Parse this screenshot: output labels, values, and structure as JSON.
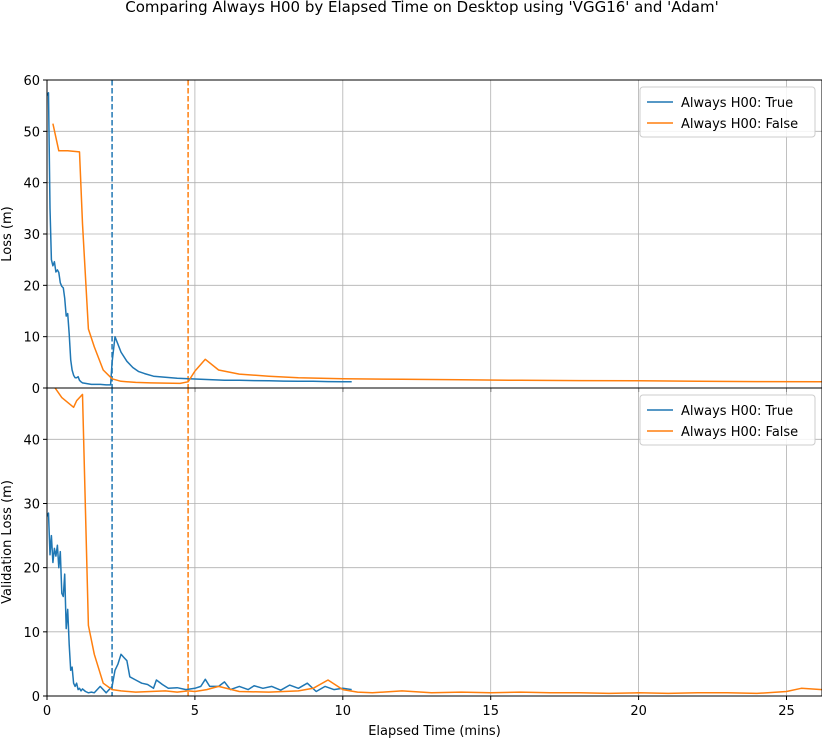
{
  "title": "Comparing Always H00 by Elapsed Time on Desktop using 'VGG16' and 'Adam'",
  "colors": {
    "series_true": "#1f77b4",
    "series_false": "#ff7f0e",
    "grid": "#b0b0b0",
    "axes": "#000000"
  },
  "chart_data": [
    {
      "type": "line",
      "ylabel": "Loss (m)",
      "xlim": [
        0,
        26.2
      ],
      "ylim": [
        0,
        60
      ],
      "yticks": [
        0,
        10,
        20,
        30,
        40,
        50,
        60
      ],
      "grid": true,
      "legend_position": "top-right",
      "vlines": [
        {
          "x": 2.2,
          "series": "Always H00: True"
        },
        {
          "x": 4.77,
          "series": "Always H00: False"
        }
      ],
      "series": [
        {
          "name": "Always H00: True",
          "x": [
            0.0,
            0.05,
            0.1,
            0.15,
            0.2,
            0.25,
            0.3,
            0.35,
            0.4,
            0.45,
            0.5,
            0.55,
            0.6,
            0.65,
            0.7,
            0.75,
            0.8,
            0.85,
            0.9,
            0.95,
            1.0,
            1.05,
            1.1,
            1.15,
            1.2,
            1.3,
            1.4,
            1.5,
            1.6,
            1.8,
            2.0,
            2.15,
            2.2,
            2.3,
            2.4,
            2.5,
            2.7,
            2.9,
            3.1,
            3.3,
            3.6,
            4.0,
            4.4,
            4.8,
            5.2,
            5.6,
            6.0,
            6.5,
            7.0,
            7.5,
            8.0,
            8.5,
            9.0,
            9.5,
            10.0,
            10.3
          ],
          "values": [
            57.0,
            57.5,
            35.0,
            25.0,
            23.8,
            24.6,
            22.6,
            23.0,
            22.5,
            20.5,
            19.8,
            19.5,
            17.5,
            14.0,
            14.5,
            10.5,
            5.5,
            3.5,
            2.5,
            2.0,
            2.0,
            2.2,
            1.5,
            1.2,
            1.0,
            0.9,
            0.8,
            0.7,
            0.7,
            0.7,
            0.6,
            0.6,
            5.0,
            10.0,
            8.5,
            7.0,
            5.2,
            4.0,
            3.2,
            2.8,
            2.3,
            2.1,
            1.9,
            1.8,
            1.7,
            1.6,
            1.5,
            1.5,
            1.45,
            1.4,
            1.35,
            1.3,
            1.3,
            1.25,
            1.2,
            1.2
          ]
        },
        {
          "name": "Always H00: False",
          "x": [
            0.2,
            0.4,
            0.7,
            1.1,
            1.2,
            1.4,
            1.6,
            1.9,
            2.2,
            2.5,
            3.0,
            3.5,
            4.0,
            4.5,
            4.77,
            5.0,
            5.35,
            5.8,
            6.5,
            7.5,
            8.5,
            10,
            12,
            14,
            16,
            18,
            20,
            22,
            24,
            26.2
          ],
          "values": [
            51.5,
            46.2,
            46.2,
            46.0,
            32.0,
            11.5,
            8.0,
            3.5,
            1.8,
            1.3,
            1.1,
            1.0,
            0.95,
            0.9,
            1.2,
            3.3,
            5.6,
            3.5,
            2.7,
            2.3,
            2.0,
            1.8,
            1.7,
            1.6,
            1.5,
            1.45,
            1.4,
            1.3,
            1.25,
            1.2
          ]
        }
      ]
    },
    {
      "type": "line",
      "xlabel": "Elapsed Time (mins)",
      "ylabel": "Validation Loss (m)",
      "xlim": [
        0,
        26.2
      ],
      "ylim": [
        0,
        48
      ],
      "xticks": [
        0,
        5,
        10,
        15,
        20,
        25
      ],
      "yticks": [
        0,
        10,
        20,
        30,
        40
      ],
      "grid": true,
      "legend_position": "top-right",
      "vlines": [
        {
          "x": 2.2,
          "series": "Always H00: True"
        },
        {
          "x": 4.77,
          "series": "Always H00: False"
        }
      ],
      "series": [
        {
          "name": "Always H00: True",
          "x": [
            0.0,
            0.05,
            0.1,
            0.15,
            0.2,
            0.25,
            0.3,
            0.35,
            0.4,
            0.45,
            0.5,
            0.55,
            0.6,
            0.65,
            0.7,
            0.75,
            0.8,
            0.85,
            0.9,
            0.95,
            1.0,
            1.05,
            1.1,
            1.15,
            1.2,
            1.3,
            1.4,
            1.5,
            1.6,
            1.8,
            2.0,
            2.1,
            2.2,
            2.3,
            2.4,
            2.5,
            2.6,
            2.7,
            2.8,
            3.0,
            3.2,
            3.4,
            3.6,
            3.7,
            3.9,
            4.1,
            4.4,
            4.7,
            5.0,
            5.2,
            5.35,
            5.5,
            5.8,
            6.0,
            6.2,
            6.5,
            6.8,
            7.0,
            7.3,
            7.6,
            7.9,
            8.2,
            8.5,
            8.8,
            9.1,
            9.4,
            9.7,
            10.0,
            10.3
          ],
          "values": [
            28.0,
            28.5,
            22.0,
            25.0,
            20.8,
            23.0,
            21.8,
            23.5,
            20.0,
            22.5,
            16.0,
            15.5,
            19.0,
            10.5,
            13.5,
            8.0,
            4.0,
            4.5,
            2.0,
            1.5,
            2.0,
            1.0,
            1.2,
            0.8,
            1.1,
            0.7,
            0.5,
            0.6,
            0.5,
            1.5,
            0.5,
            1.0,
            1.5,
            4.0,
            5.0,
            6.5,
            6.0,
            5.5,
            3.0,
            2.5,
            2.0,
            1.8,
            1.2,
            2.5,
            1.8,
            1.2,
            1.3,
            1.0,
            1.2,
            1.5,
            2.6,
            1.5,
            1.5,
            2.2,
            1.0,
            1.5,
            1.0,
            1.6,
            1.2,
            1.5,
            0.9,
            1.7,
            1.2,
            2.0,
            0.7,
            1.5,
            1.0,
            1.2,
            1.0
          ]
        },
        {
          "name": "Always H00: False",
          "x": [
            0.2,
            0.5,
            0.9,
            1.0,
            1.2,
            1.4,
            1.6,
            1.9,
            2.2,
            2.5,
            3.0,
            3.5,
            4.0,
            4.4,
            4.77,
            5.0,
            5.4,
            5.8,
            6.5,
            7.5,
            8.5,
            9.0,
            9.5,
            10.0,
            10.5,
            11.0,
            12.0,
            13.0,
            14.0,
            15.0,
            16.0,
            17.0,
            18.0,
            19.0,
            20.0,
            21.0,
            22.0,
            23.0,
            24.0,
            25.0,
            25.5,
            26.2
          ],
          "values": [
            48.5,
            46.5,
            45.0,
            46.0,
            47.0,
            11.0,
            6.5,
            2.0,
            1.0,
            0.8,
            0.6,
            0.7,
            0.8,
            0.6,
            0.8,
            0.7,
            1.0,
            1.5,
            0.7,
            0.6,
            0.8,
            1.2,
            2.5,
            1.0,
            0.6,
            0.5,
            0.8,
            0.5,
            0.6,
            0.5,
            0.6,
            0.5,
            0.5,
            0.4,
            0.5,
            0.4,
            0.5,
            0.5,
            0.4,
            0.7,
            1.2,
            1.0
          ]
        }
      ]
    }
  ]
}
